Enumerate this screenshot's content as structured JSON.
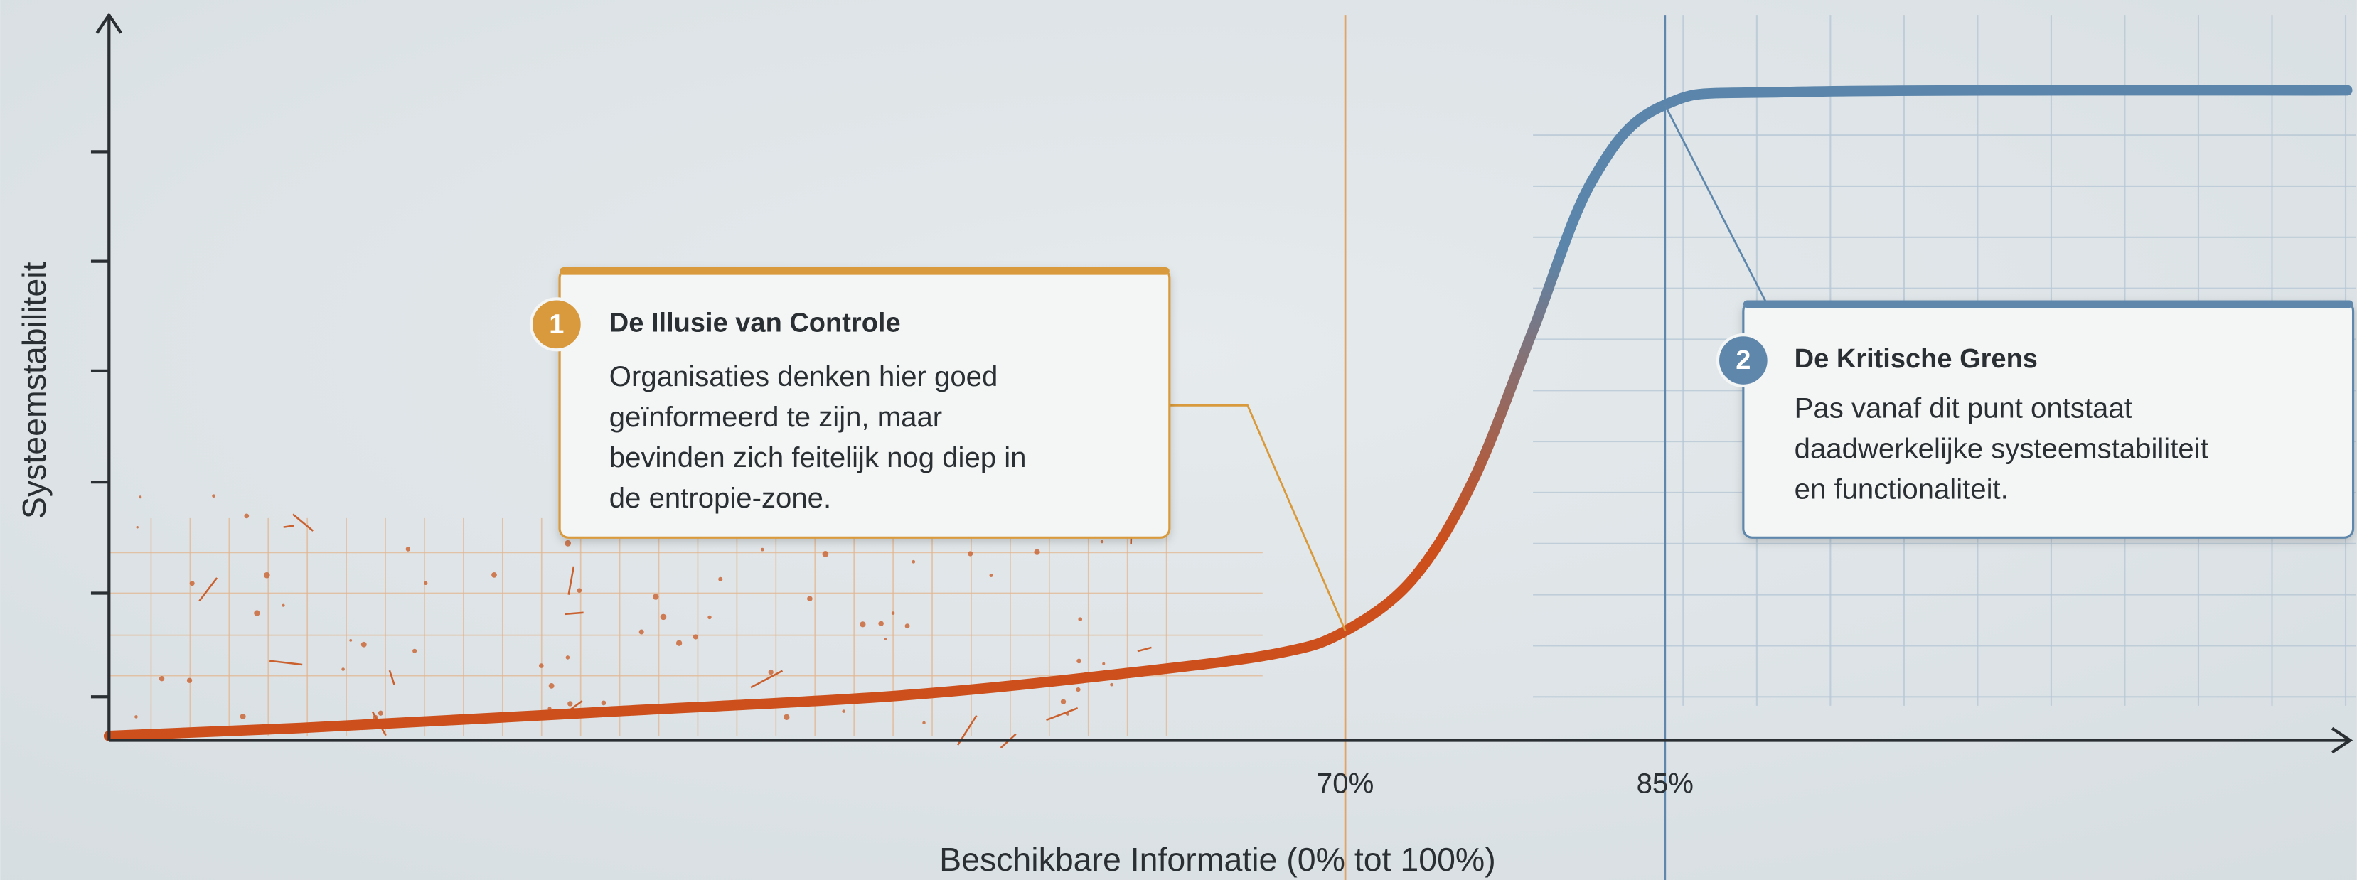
{
  "chart_data": {
    "type": "line",
    "x_label": "Beschikbare Informatie (0% tot 100%)",
    "y_label": "Systeemstabiliteit",
    "xlim": [
      12,
      117
    ],
    "ylim": [
      0,
      100
    ],
    "xticks": [
      {
        "value": 70,
        "label": "70%"
      },
      {
        "value": 85,
        "label": "85%"
      }
    ],
    "tick_colors": [
      "#e0a468",
      "#5f87ab"
    ],
    "series": [
      {
        "colors": [
          "#cc4f1c",
          "#5b85aa"
        ],
        "x": [
          12,
          21,
          35.1,
          49.2,
          59.8,
          66.8,
          70,
          73.2,
          76,
          78.8,
          81.6,
          85,
          91.5,
          117
        ],
        "values": [
          0.4,
          1.5,
          3.7,
          6,
          9.1,
          11.8,
          14.9,
          22.2,
          35.7,
          56.4,
          77.2,
          87.6,
          89.4,
          89.6
        ]
      }
    ],
    "annotations": [
      {
        "number": "1",
        "title": "De Illusie van Controle",
        "color": "#d89a3c",
        "lines": [
          "Organisaties denken hier goed",
          "geïnformeerd te zijn, maar",
          "bevinden zich feitelijk nog diep in",
          "de entropie-zone."
        ]
      },
      {
        "number": "2",
        "title": "De Kritische Grens",
        "color": "#5f87ab",
        "lines": [
          "Pas vanaf dit punt ontstaat",
          "daadwerkelijke systeemstabiliteit",
          "en functionaliteit."
        ]
      }
    ]
  }
}
